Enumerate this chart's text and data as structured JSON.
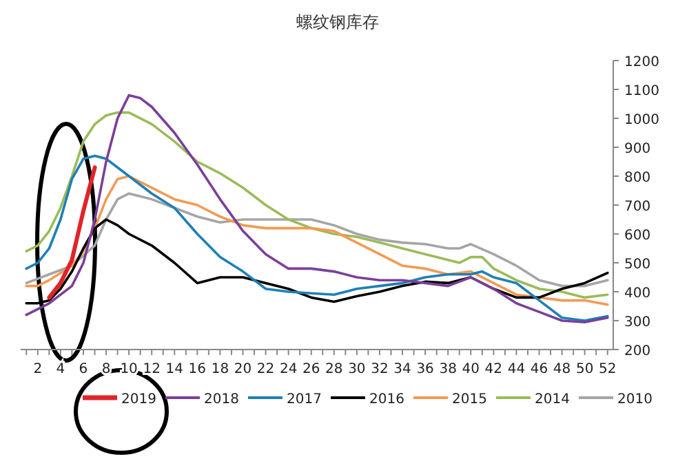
{
  "chart_data": {
    "type": "line",
    "title": "螺纹钢库存",
    "legend": "bottom",
    "marker": "none",
    "line_style": "solid",
    "xlim": [
      0.5,
      52.5
    ],
    "xticks": [
      {
        "value": 1,
        "label": null
      },
      2,
      {
        "value": 3,
        "label": null
      },
      4,
      {
        "value": 5,
        "label": null
      },
      6,
      {
        "value": 7,
        "label": null
      },
      8,
      {
        "value": 9,
        "label": null
      },
      10,
      {
        "value": 11,
        "label": null
      },
      12,
      {
        "value": 13,
        "label": null
      },
      14,
      {
        "value": 15,
        "label": null
      },
      16,
      {
        "value": 17,
        "label": null
      },
      18,
      {
        "value": 19,
        "label": null
      },
      20,
      {
        "value": 21,
        "label": null
      },
      22,
      {
        "value": 23,
        "label": null
      },
      24,
      {
        "value": 25,
        "label": null
      },
      26,
      {
        "value": 27,
        "label": null
      },
      28,
      {
        "value": 29,
        "label": null
      },
      30,
      {
        "value": 31,
        "label": null
      },
      32,
      {
        "value": 33,
        "label": null
      },
      34,
      {
        "value": 35,
        "label": null
      },
      36,
      {
        "value": 37,
        "label": null
      },
      38,
      {
        "value": 39,
        "label": null
      },
      40,
      {
        "value": 41,
        "label": null
      },
      42,
      {
        "value": 43,
        "label": null
      },
      44,
      {
        "value": 45,
        "label": null
      },
      46,
      {
        "value": 47,
        "label": null
      },
      48,
      {
        "value": 49,
        "label": null
      },
      50,
      {
        "value": 51,
        "label": null
      },
      52
    ],
    "ylim": [
      200,
      1200
    ],
    "yticks": [
      200,
      300,
      400,
      500,
      600,
      700,
      800,
      900,
      1000,
      1100,
      1200
    ],
    "series": [
      {
        "name": "2019",
        "color": "#e0242a",
        "x": [
          3,
          4,
          5,
          6,
          7
        ],
        "values": [
          380,
          430,
          510,
          680,
          830
        ]
      },
      {
        "name": "2018",
        "color": "#7b3f98",
        "x": [
          1,
          3,
          5,
          6,
          7,
          8,
          9,
          10,
          11,
          12,
          14,
          16,
          18,
          20,
          22,
          24,
          26,
          28,
          30,
          32,
          34,
          36,
          38,
          40,
          42,
          44,
          46,
          48,
          50,
          52
        ],
        "values": [
          320,
          360,
          420,
          500,
          650,
          850,
          1000,
          1080,
          1070,
          1040,
          950,
          840,
          720,
          610,
          530,
          480,
          480,
          470,
          450,
          440,
          440,
          430,
          420,
          450,
          410,
          360,
          330,
          300,
          295,
          310
        ]
      },
      {
        "name": "2017",
        "color": "#1f7fb5",
        "x": [
          1,
          2,
          3,
          4,
          5,
          6,
          7,
          8,
          10,
          12,
          14,
          16,
          18,
          20,
          22,
          24,
          26,
          28,
          30,
          32,
          34,
          36,
          38,
          40,
          41,
          42,
          44,
          46,
          48,
          50,
          52
        ],
        "values": [
          480,
          500,
          550,
          650,
          790,
          860,
          870,
          860,
          800,
          740,
          690,
          600,
          520,
          470,
          410,
          400,
          395,
          390,
          410,
          420,
          430,
          450,
          460,
          460,
          470,
          450,
          430,
          370,
          310,
          300,
          315
        ]
      },
      {
        "name": "2016",
        "color": "#000000",
        "x": [
          1,
          2,
          3,
          4,
          5,
          6,
          7,
          8,
          9,
          10,
          12,
          14,
          16,
          18,
          20,
          22,
          24,
          26,
          28,
          30,
          32,
          34,
          36,
          38,
          40,
          42,
          44,
          46,
          48,
          50,
          52
        ],
        "values": [
          360,
          360,
          370,
          410,
          470,
          550,
          620,
          650,
          630,
          600,
          560,
          500,
          430,
          450,
          450,
          430,
          410,
          380,
          365,
          385,
          400,
          420,
          435,
          430,
          450,
          410,
          380,
          380,
          410,
          430,
          465
        ]
      },
      {
        "name": "2015",
        "color": "#f39a55",
        "x": [
          1,
          2,
          3,
          5,
          6,
          7,
          8,
          9,
          10,
          12,
          14,
          16,
          18,
          20,
          22,
          24,
          26,
          28,
          30,
          32,
          34,
          36,
          38,
          40,
          42,
          44,
          46,
          48,
          50,
          52
        ],
        "values": [
          420,
          420,
          440,
          490,
          540,
          620,
          720,
          790,
          800,
          760,
          720,
          700,
          660,
          630,
          620,
          620,
          620,
          610,
          570,
          530,
          490,
          480,
          460,
          470,
          430,
          390,
          380,
          370,
          370,
          355
        ]
      },
      {
        "name": "2014",
        "color": "#9bbb59",
        "x": [
          1,
          2,
          3,
          4,
          5,
          6,
          7,
          8,
          9,
          10,
          12,
          14,
          16,
          18,
          20,
          22,
          24,
          26,
          28,
          30,
          32,
          34,
          36,
          38,
          39,
          40,
          41,
          42,
          44,
          46,
          48,
          50,
          52
        ],
        "values": [
          540,
          560,
          610,
          690,
          800,
          920,
          980,
          1010,
          1020,
          1020,
          980,
          920,
          850,
          810,
          760,
          700,
          650,
          620,
          600,
          590,
          570,
          550,
          530,
          510,
          500,
          520,
          520,
          480,
          440,
          410,
          400,
          380,
          390
        ]
      },
      {
        "name": "2010",
        "color": "#a5a5a5",
        "x": [
          1,
          3,
          5,
          7,
          8,
          9,
          10,
          12,
          14,
          16,
          18,
          20,
          22,
          24,
          26,
          28,
          30,
          32,
          34,
          36,
          38,
          39,
          40,
          42,
          44,
          46,
          48,
          50,
          52
        ],
        "values": [
          430,
          460,
          490,
          560,
          650,
          720,
          740,
          720,
          690,
          660,
          640,
          650,
          650,
          650,
          650,
          630,
          600,
          580,
          570,
          565,
          550,
          550,
          565,
          530,
          490,
          440,
          420,
          420,
          440
        ]
      }
    ]
  }
}
